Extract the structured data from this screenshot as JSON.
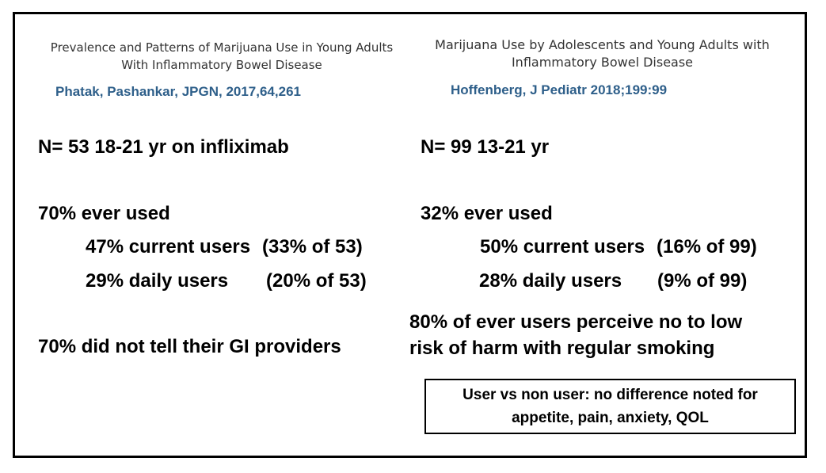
{
  "left": {
    "paper_title_line1": "Prevalence and Patterns of Marijuana Use in Young Adults",
    "paper_title_line2": "With Inflammatory Bowel Disease",
    "citation": "Phatak, Pashankar, JPGN, 2017,64,261",
    "n_line": "N= 53  18-21 yr on infliximab",
    "ever_used": "70% ever used",
    "current_users_pct": "47% current users",
    "current_users_of": "(33% of 53)",
    "daily_users_pct": "29% daily users",
    "daily_users_of": "(20% of 53)",
    "did_not_tell": "70% did not tell their GI providers"
  },
  "right": {
    "paper_title_line1": "Marijuana Use by Adolescents and Young Adults with",
    "paper_title_line2": "Inflammatory Bowel Disease",
    "citation": "Hoffenberg, J Pediatr 2018;199:99",
    "n_line": "N= 99  13-21 yr",
    "ever_used": "32% ever used",
    "current_users_pct": "50% current users",
    "current_users_of": "(16% of 99)",
    "daily_users_pct": "28% daily users",
    "daily_users_of": "(9% of 99)",
    "risk_line1": "80% of ever users perceive no to low",
    "risk_line2": "risk of harm with regular smoking",
    "note_line1": "User vs non user:  no difference noted for",
    "note_line2": "appetite, pain, anxiety, QOL"
  },
  "colors": {
    "citation": "#2e5f8a",
    "text": "#000000",
    "background": "#ffffff"
  }
}
